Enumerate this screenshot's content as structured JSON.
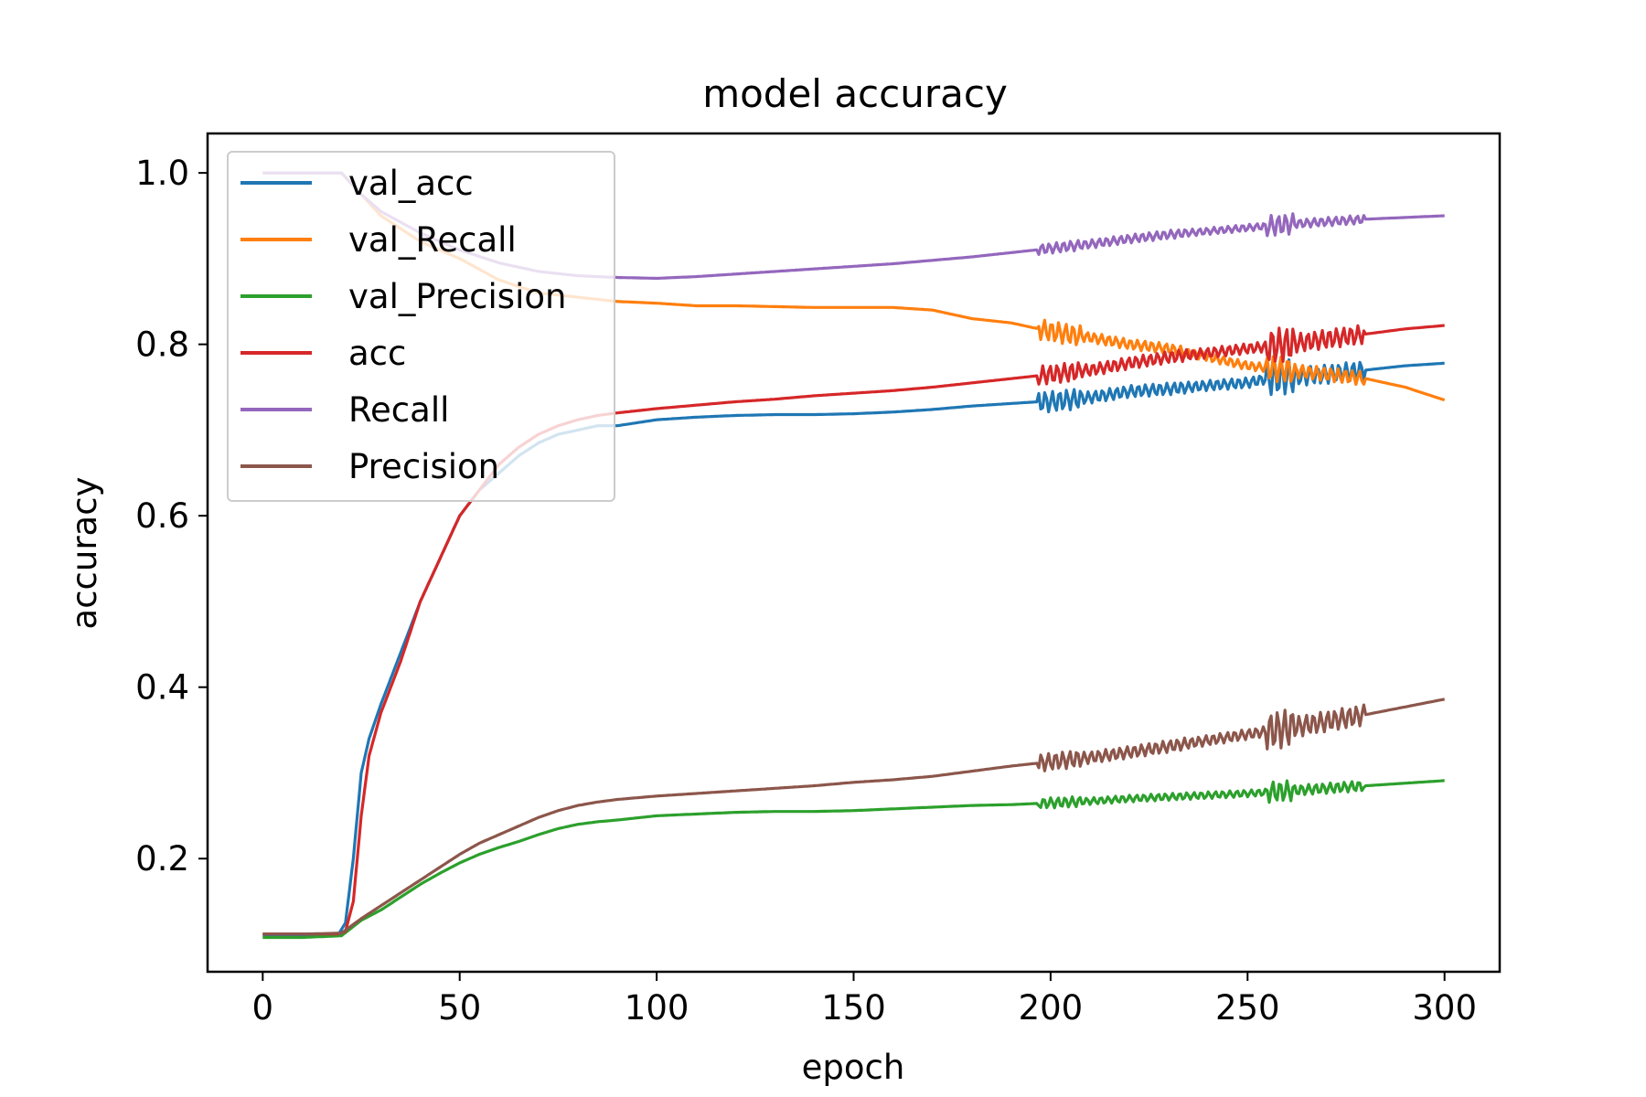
{
  "chart_data": {
    "type": "line",
    "title": "model accuracy",
    "xlabel": "epoch",
    "ylabel": "accuracy",
    "xlim": [
      -14,
      314
    ],
    "ylim": [
      0.068,
      1.046
    ],
    "xticks": [
      0,
      50,
      100,
      150,
      200,
      250,
      300
    ],
    "yticks": [
      0.2,
      0.4,
      0.6,
      0.8,
      1.0
    ],
    "xtick_labels": [
      "0",
      "50",
      "100",
      "150",
      "200",
      "250",
      "300"
    ],
    "ytick_labels": [
      "0.2",
      "0.4",
      "0.6",
      "0.8",
      "1.0"
    ],
    "grid": false,
    "legend_position": "upper-left",
    "series": [
      {
        "name": "val_acc",
        "color": "#1f77b4",
        "x": [
          0,
          10,
          19,
          21,
          23,
          25,
          27,
          30,
          35,
          40,
          45,
          50,
          55,
          60,
          65,
          70,
          75,
          80,
          85,
          90,
          100,
          110,
          120,
          130,
          140,
          150,
          160,
          170,
          180,
          190,
          197,
          200,
          210,
          220,
          230,
          240,
          250,
          255,
          260,
          270,
          280,
          290,
          300
        ],
        "y": [
          0.11,
          0.11,
          0.11,
          0.125,
          0.2,
          0.3,
          0.34,
          0.38,
          0.44,
          0.5,
          0.55,
          0.6,
          0.63,
          0.65,
          0.67,
          0.685,
          0.695,
          0.7,
          0.705,
          0.705,
          0.712,
          0.715,
          0.717,
          0.718,
          0.718,
          0.719,
          0.721,
          0.724,
          0.728,
          0.731,
          0.733,
          0.733,
          0.738,
          0.745,
          0.748,
          0.752,
          0.755,
          0.76,
          0.762,
          0.765,
          0.77,
          0.775,
          0.778
        ],
        "oscillation": [
          [
            197,
            208,
            0.012
          ],
          [
            208,
            235,
            0.007
          ],
          [
            235,
            255,
            0.006
          ],
          [
            255,
            262,
            0.02
          ],
          [
            262,
            280,
            0.011
          ]
        ]
      },
      {
        "name": "val_Recall",
        "color": "#ff7f0e",
        "x": [
          0,
          10,
          20,
          25,
          30,
          40,
          50,
          60,
          70,
          80,
          90,
          100,
          110,
          120,
          130,
          140,
          150,
          160,
          170,
          180,
          190,
          200,
          210,
          220,
          230,
          240,
          250,
          260,
          270,
          280,
          290,
          300
        ],
        "y": [
          1.0,
          1.0,
          1.0,
          0.975,
          0.95,
          0.92,
          0.9,
          0.875,
          0.86,
          0.855,
          0.85,
          0.848,
          0.845,
          0.845,
          0.844,
          0.843,
          0.843,
          0.843,
          0.84,
          0.83,
          0.825,
          0.815,
          0.808,
          0.8,
          0.795,
          0.785,
          0.775,
          0.77,
          0.765,
          0.76,
          0.75,
          0.735
        ],
        "oscillation": [
          [
            197,
            208,
            0.012
          ],
          [
            208,
            235,
            0.006
          ],
          [
            235,
            255,
            0.005
          ],
          [
            255,
            262,
            0.015
          ],
          [
            262,
            280,
            0.008
          ]
        ]
      },
      {
        "name": "val_Precision",
        "color": "#2ca02c",
        "x": [
          0,
          10,
          20,
          25,
          30,
          35,
          40,
          45,
          50,
          55,
          60,
          65,
          70,
          75,
          80,
          85,
          90,
          100,
          110,
          120,
          130,
          140,
          150,
          160,
          170,
          180,
          190,
          200,
          210,
          220,
          230,
          240,
          250,
          260,
          270,
          280,
          290,
          300
        ],
        "y": [
          0.108,
          0.108,
          0.11,
          0.128,
          0.14,
          0.155,
          0.17,
          0.183,
          0.195,
          0.205,
          0.213,
          0.22,
          0.228,
          0.235,
          0.24,
          0.243,
          0.245,
          0.25,
          0.252,
          0.254,
          0.255,
          0.255,
          0.256,
          0.258,
          0.26,
          0.262,
          0.263,
          0.265,
          0.267,
          0.27,
          0.272,
          0.274,
          0.276,
          0.279,
          0.282,
          0.285,
          0.288,
          0.291
        ],
        "oscillation": [
          [
            197,
            208,
            0.006
          ],
          [
            208,
            235,
            0.004
          ],
          [
            235,
            255,
            0.004
          ],
          [
            255,
            262,
            0.012
          ],
          [
            262,
            280,
            0.006
          ]
        ]
      },
      {
        "name": "acc",
        "color": "#d62728",
        "x": [
          0,
          10,
          19,
          21,
          23,
          25,
          27,
          30,
          35,
          40,
          45,
          50,
          55,
          60,
          65,
          70,
          75,
          80,
          85,
          90,
          100,
          110,
          120,
          130,
          140,
          150,
          160,
          170,
          180,
          190,
          200,
          210,
          220,
          230,
          240,
          250,
          260,
          270,
          280,
          290,
          300
        ],
        "y": [
          0.112,
          0.112,
          0.112,
          0.115,
          0.15,
          0.25,
          0.32,
          0.37,
          0.43,
          0.5,
          0.55,
          0.6,
          0.63,
          0.66,
          0.68,
          0.695,
          0.705,
          0.712,
          0.717,
          0.72,
          0.725,
          0.729,
          0.733,
          0.736,
          0.74,
          0.743,
          0.746,
          0.75,
          0.755,
          0.76,
          0.765,
          0.77,
          0.778,
          0.785,
          0.79,
          0.795,
          0.8,
          0.806,
          0.812,
          0.818,
          0.822
        ],
        "oscillation": [
          [
            197,
            208,
            0.011
          ],
          [
            208,
            235,
            0.007
          ],
          [
            235,
            255,
            0.006
          ],
          [
            255,
            262,
            0.02
          ],
          [
            262,
            280,
            0.011
          ]
        ]
      },
      {
        "name": "Recall",
        "color": "#9467bd",
        "x": [
          0,
          10,
          20,
          25,
          30,
          40,
          50,
          60,
          70,
          80,
          90,
          100,
          110,
          120,
          130,
          140,
          150,
          160,
          170,
          180,
          190,
          200,
          210,
          220,
          230,
          240,
          250,
          260,
          270,
          280,
          290,
          300
        ],
        "y": [
          1.0,
          1.0,
          1.0,
          0.975,
          0.955,
          0.93,
          0.91,
          0.895,
          0.885,
          0.88,
          0.878,
          0.877,
          0.879,
          0.882,
          0.885,
          0.888,
          0.891,
          0.894,
          0.898,
          0.902,
          0.907,
          0.912,
          0.917,
          0.923,
          0.928,
          0.932,
          0.936,
          0.94,
          0.943,
          0.946,
          0.948,
          0.95
        ],
        "oscillation": [
          [
            197,
            208,
            0.006
          ],
          [
            208,
            235,
            0.005
          ],
          [
            235,
            255,
            0.004
          ],
          [
            255,
            262,
            0.012
          ],
          [
            262,
            280,
            0.005
          ]
        ]
      },
      {
        "name": "Precision",
        "color": "#8c564b",
        "x": [
          0,
          10,
          20,
          25,
          30,
          35,
          40,
          45,
          50,
          55,
          60,
          65,
          70,
          75,
          80,
          85,
          90,
          100,
          110,
          120,
          130,
          140,
          150,
          160,
          170,
          180,
          190,
          200,
          210,
          220,
          230,
          240,
          250,
          260,
          270,
          280,
          290,
          300
        ],
        "y": [
          0.112,
          0.112,
          0.113,
          0.13,
          0.145,
          0.16,
          0.175,
          0.19,
          0.205,
          0.218,
          0.228,
          0.238,
          0.248,
          0.256,
          0.262,
          0.266,
          0.269,
          0.273,
          0.276,
          0.279,
          0.282,
          0.285,
          0.289,
          0.292,
          0.296,
          0.302,
          0.308,
          0.313,
          0.318,
          0.324,
          0.331,
          0.338,
          0.345,
          0.352,
          0.36,
          0.368,
          0.377,
          0.386
        ],
        "oscillation": [
          [
            197,
            208,
            0.01
          ],
          [
            208,
            235,
            0.007
          ],
          [
            235,
            255,
            0.006
          ],
          [
            255,
            262,
            0.022
          ],
          [
            262,
            280,
            0.012
          ]
        ]
      }
    ]
  }
}
